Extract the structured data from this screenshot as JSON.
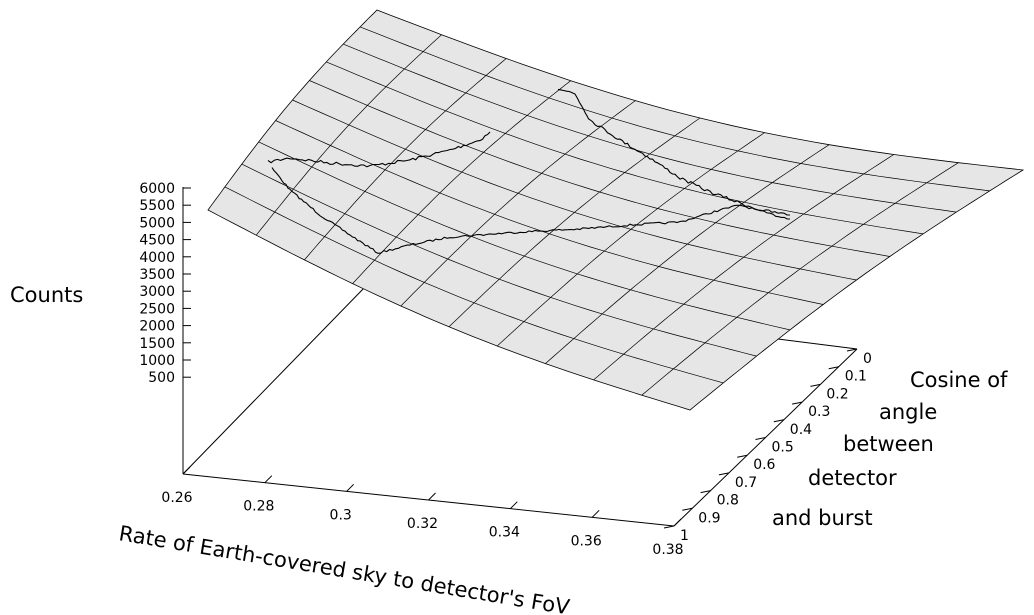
{
  "chart_data": {
    "type": "surface3d",
    "zlabel": "Counts",
    "xlabel": "Rate of Earth-covered sky to detector's FoV",
    "ylabel_lines": [
      "Cosine of",
      "angle",
      "between",
      "detector",
      "and burst"
    ],
    "x_ticks": [
      "0.26",
      "0.28",
      "0.3",
      "0.32",
      "0.34",
      "0.36",
      "0.38"
    ],
    "y_ticks": [
      "0",
      "0.1",
      "0.2",
      "0.3",
      "0.4",
      "0.5",
      "0.6",
      "0.7",
      "0.8",
      "0.9",
      "1"
    ],
    "z_ticks": [
      "6000",
      "5500",
      "5000",
      "4500",
      "4000",
      "3500",
      "3000",
      "2500",
      "2000",
      "1500",
      "1000",
      "500"
    ],
    "xlim": [
      0.26,
      0.38
    ],
    "ylim": [
      0,
      1
    ],
    "zlim": [
      0,
      6000
    ],
    "grid": false,
    "surface_color": "#e6e6e6",
    "line_color": "#000000"
  }
}
